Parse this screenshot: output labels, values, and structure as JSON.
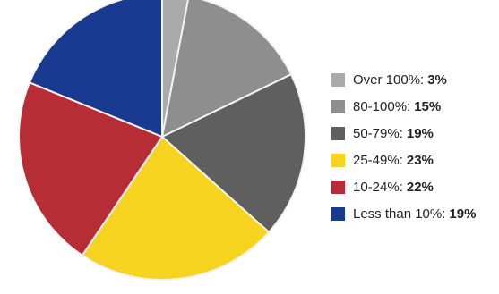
{
  "chart_data": {
    "type": "pie",
    "title": "",
    "xlabel": "",
    "ylabel": "",
    "categories": [
      "Over 100%",
      "80-100%",
      "50-79%",
      "25-49%",
      "10-24%",
      "Less than 10%"
    ],
    "values": [
      3,
      15,
      19,
      23,
      22,
      19
    ],
    "display_values": [
      "3%",
      "15%",
      "19%",
      "23%",
      "22%",
      "19%"
    ],
    "label_suffixes": [
      ":",
      ":",
      ":",
      ":",
      ":",
      ":"
    ],
    "colors": [
      "#aaaaaa",
      "#8e8e8e",
      "#5f5f5f",
      "#f5d31e",
      "#b72d35",
      "#183b91"
    ],
    "legend_position": "right",
    "grid": false
  }
}
